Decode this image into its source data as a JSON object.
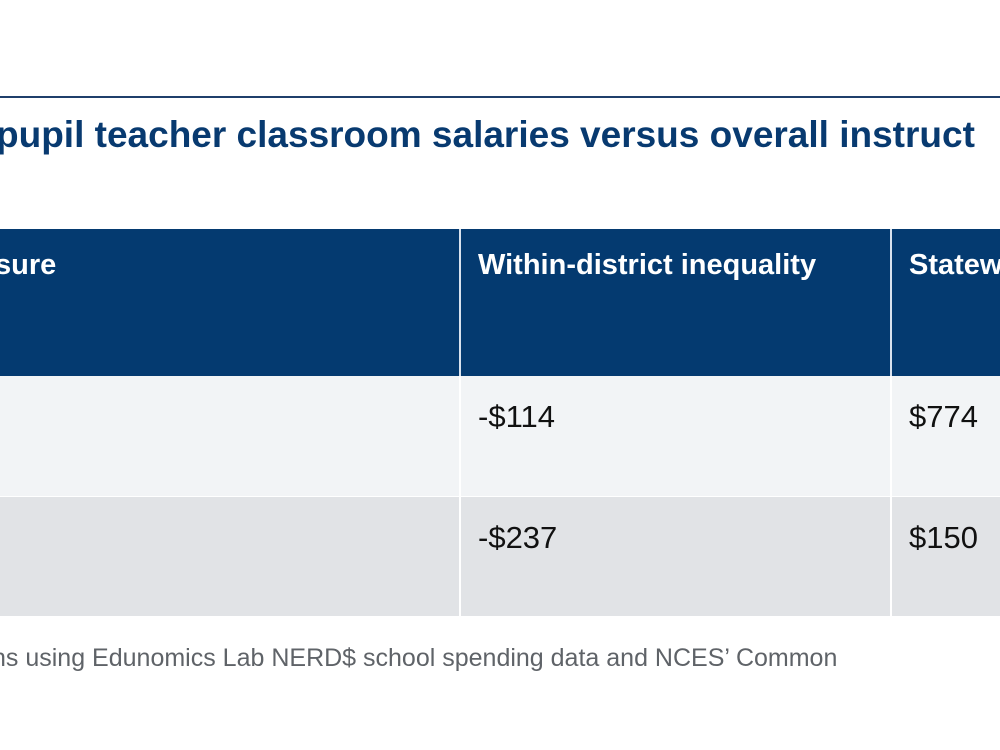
{
  "title": "pupil teacher classroom salaries versus overall instruct",
  "chart_data": {
    "type": "table",
    "columns": [
      "sure",
      "Within-district inequality",
      "Statew"
    ],
    "rows": [
      [
        "",
        "-$114",
        "$774"
      ],
      [
        "",
        "-$237",
        "$150"
      ]
    ]
  },
  "source": "ns using Edunomics Lab NERD$ school spending data and NCES’ Common"
}
